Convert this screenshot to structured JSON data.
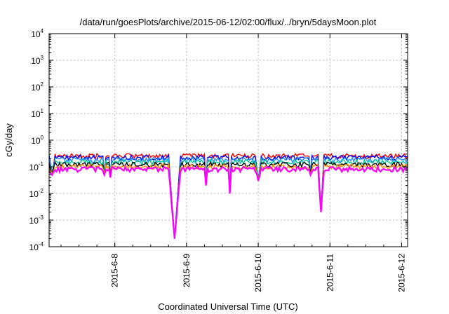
{
  "chart_data": {
    "type": "line",
    "title": "/data/run/goesPlots/archive/2015-06-12/02:00/flux/../bryn/5daysMoon.plot",
    "xlabel": "Coordinated Universal Time (UTC)",
    "ylabel": "cGy/day",
    "yscale": "log",
    "ylim": [
      0.0001,
      10000
    ],
    "y_ticks": [
      {
        "base": "10",
        "exp": "-4",
        "value": 0.0001
      },
      {
        "base": "10",
        "exp": "-3",
        "value": 0.001
      },
      {
        "base": "10",
        "exp": "-2",
        "value": 0.01
      },
      {
        "base": "10",
        "exp": "-1",
        "value": 0.1
      },
      {
        "base": "10",
        "exp": "0",
        "value": 1
      },
      {
        "base": "10",
        "exp": "1",
        "value": 10
      },
      {
        "base": "10",
        "exp": "2",
        "value": 100
      },
      {
        "base": "10",
        "exp": "3",
        "value": 1000
      },
      {
        "base": "10",
        "exp": "4",
        "value": 10000
      }
    ],
    "xlim": [
      "2015-06-07T02:00",
      "2015-06-12T02:00"
    ],
    "x_ticks": [
      {
        "label": "2015-6-8",
        "date": "2015-06-08T00:00"
      },
      {
        "label": "2015-6-9",
        "date": "2015-06-09T00:00"
      },
      {
        "label": "2015-6-10",
        "date": "2015-06-10T00:00"
      },
      {
        "label": "2015-6-11",
        "date": "2015-06-11T00:00"
      },
      {
        "label": "2015-6-12",
        "date": "2015-06-12T00:00"
      }
    ],
    "grid": true,
    "legend": "none",
    "dips": [
      {
        "start": "2015-06-07T02:00",
        "end": "2015-06-07T04:00",
        "min": 0.05
      },
      {
        "start": "2015-06-07T20:00",
        "end": "2015-06-07T21:00",
        "min": 0.05
      },
      {
        "start": "2015-06-07T22:00",
        "end": "2015-06-07T23:00",
        "min": 0.04
      },
      {
        "start": "2015-06-08T18:00",
        "end": "2015-06-08T22:00",
        "min": 0.0002
      },
      {
        "start": "2015-06-09T06:00",
        "end": "2015-06-09T07:00",
        "min": 0.02
      },
      {
        "start": "2015-06-09T14:00",
        "end": "2015-06-09T15:00",
        "min": 0.01
      },
      {
        "start": "2015-06-09T23:00",
        "end": "2015-06-10T01:00",
        "min": 0.03
      },
      {
        "start": "2015-06-10T17:00",
        "end": "2015-06-10T18:00",
        "min": 0.05
      },
      {
        "start": "2015-06-10T20:00",
        "end": "2015-06-10T22:00",
        "min": 0.002
      }
    ],
    "series": [
      {
        "color": "#ff0000",
        "level": 0.25
      },
      {
        "color": "#0000ff",
        "level": 0.22
      },
      {
        "color": "#1e90ff",
        "level": 0.18
      },
      {
        "color": "#00c896",
        "level": 0.15
      },
      {
        "color": "#000000",
        "level": 0.12
      },
      {
        "color": "#ff8c00",
        "level": 0.1
      },
      {
        "color": "#ff00ff",
        "level": 0.08
      }
    ]
  }
}
